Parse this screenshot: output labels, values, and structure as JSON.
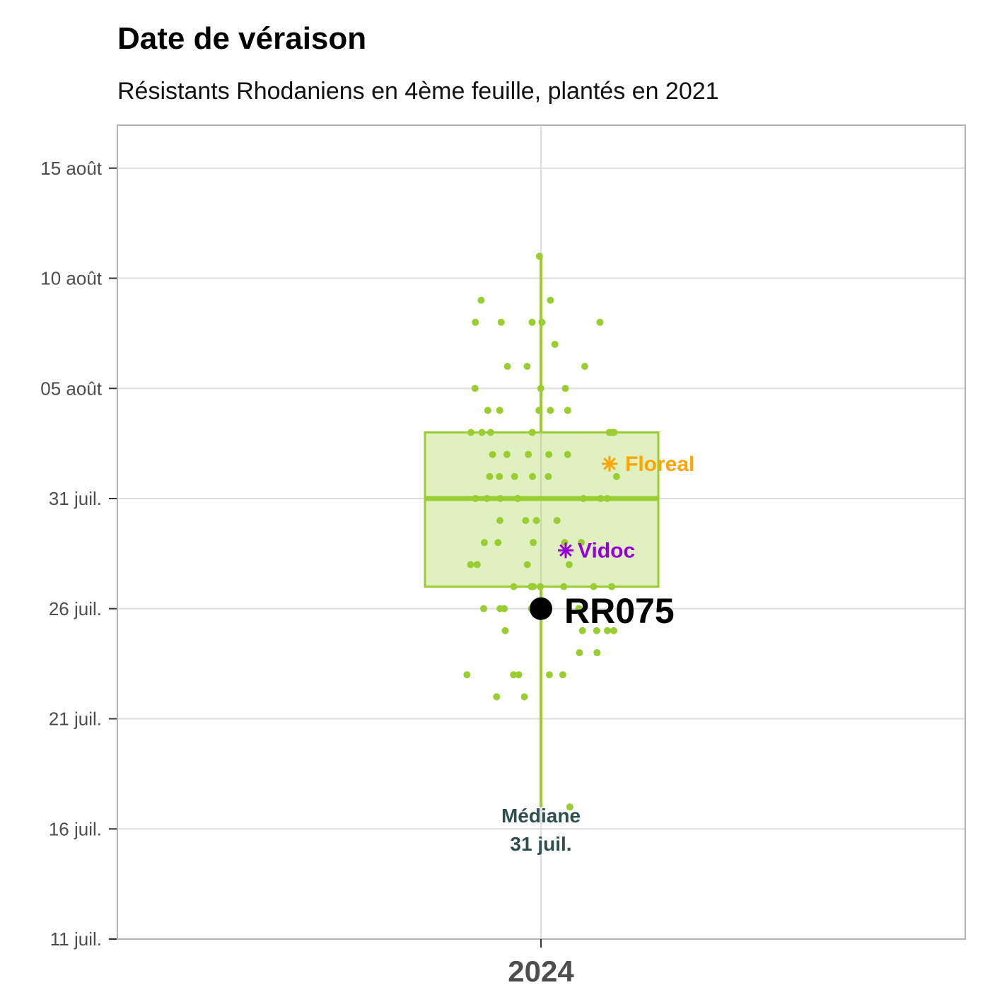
{
  "chart_data": {
    "type": "boxplot",
    "title": "Date de véraison",
    "subtitle": "Résistants Rhodaniens en 4ème feuille, plantés en 2021",
    "xlabel": "",
    "ylabel": "",
    "categories": [
      "2024"
    ],
    "y_ticks": [
      {
        "date": "2024-07-11",
        "label": "11 juil."
      },
      {
        "date": "2024-07-16",
        "label": "16 juil."
      },
      {
        "date": "2024-07-21",
        "label": "21 juil."
      },
      {
        "date": "2024-07-26",
        "label": "26 juil."
      },
      {
        "date": "2024-07-31",
        "label": "31 juil."
      },
      {
        "date": "2024-08-05",
        "label": "05 août"
      },
      {
        "date": "2024-08-10",
        "label": "10 août"
      },
      {
        "date": "2024-08-15",
        "label": "15 août"
      }
    ],
    "ylim": [
      "2024-07-11",
      "2024-08-17"
    ],
    "grid": true,
    "box": {
      "category": "2024",
      "min": "2024-07-17",
      "q1": "2024-07-27",
      "median": "2024-07-31",
      "q3": "2024-08-03",
      "max": "2024-08-11",
      "color": "#9acd32"
    },
    "points": [
      {
        "date": "2024-08-11"
      },
      {
        "date": "2024-08-09"
      },
      {
        "date": "2024-08-09"
      },
      {
        "date": "2024-08-08"
      },
      {
        "date": "2024-08-08"
      },
      {
        "date": "2024-08-08"
      },
      {
        "date": "2024-08-08"
      },
      {
        "date": "2024-08-08"
      },
      {
        "date": "2024-08-07"
      },
      {
        "date": "2024-08-06"
      },
      {
        "date": "2024-08-06"
      },
      {
        "date": "2024-08-06"
      },
      {
        "date": "2024-08-05"
      },
      {
        "date": "2024-08-05"
      },
      {
        "date": "2024-08-05"
      },
      {
        "date": "2024-08-04"
      },
      {
        "date": "2024-08-04"
      },
      {
        "date": "2024-08-04"
      },
      {
        "date": "2024-08-04"
      },
      {
        "date": "2024-08-04"
      },
      {
        "date": "2024-08-03"
      },
      {
        "date": "2024-08-03"
      },
      {
        "date": "2024-08-03"
      },
      {
        "date": "2024-08-03"
      },
      {
        "date": "2024-08-03"
      },
      {
        "date": "2024-08-03"
      },
      {
        "date": "2024-08-03"
      },
      {
        "date": "2024-08-02"
      },
      {
        "date": "2024-08-02"
      },
      {
        "date": "2024-08-02"
      },
      {
        "date": "2024-08-02"
      },
      {
        "date": "2024-08-02"
      },
      {
        "date": "2024-08-01"
      },
      {
        "date": "2024-08-01"
      },
      {
        "date": "2024-08-01"
      },
      {
        "date": "2024-08-01"
      },
      {
        "date": "2024-08-01"
      },
      {
        "date": "2024-08-01"
      },
      {
        "date": "2024-07-31"
      },
      {
        "date": "2024-07-31"
      },
      {
        "date": "2024-07-31"
      },
      {
        "date": "2024-07-31"
      },
      {
        "date": "2024-07-31"
      },
      {
        "date": "2024-07-31"
      },
      {
        "date": "2024-07-31"
      },
      {
        "date": "2024-07-31"
      },
      {
        "date": "2024-07-30"
      },
      {
        "date": "2024-07-30"
      },
      {
        "date": "2024-07-30"
      },
      {
        "date": "2024-07-30"
      },
      {
        "date": "2024-07-29"
      },
      {
        "date": "2024-07-29"
      },
      {
        "date": "2024-07-29"
      },
      {
        "date": "2024-07-29"
      },
      {
        "date": "2024-07-29"
      },
      {
        "date": "2024-07-28"
      },
      {
        "date": "2024-07-28"
      },
      {
        "date": "2024-07-28"
      },
      {
        "date": "2024-07-28"
      },
      {
        "date": "2024-07-27"
      },
      {
        "date": "2024-07-27"
      },
      {
        "date": "2024-07-27"
      },
      {
        "date": "2024-07-27"
      },
      {
        "date": "2024-07-27"
      },
      {
        "date": "2024-07-27"
      },
      {
        "date": "2024-07-27"
      },
      {
        "date": "2024-07-27"
      },
      {
        "date": "2024-07-26"
      },
      {
        "date": "2024-07-26"
      },
      {
        "date": "2024-07-26"
      },
      {
        "date": "2024-07-26"
      },
      {
        "date": "2024-07-26"
      },
      {
        "date": "2024-07-25"
      },
      {
        "date": "2024-07-25"
      },
      {
        "date": "2024-07-25"
      },
      {
        "date": "2024-07-25"
      },
      {
        "date": "2024-07-25"
      },
      {
        "date": "2024-07-24"
      },
      {
        "date": "2024-07-24"
      },
      {
        "date": "2024-07-23"
      },
      {
        "date": "2024-07-23"
      },
      {
        "date": "2024-07-23"
      },
      {
        "date": "2024-07-23"
      },
      {
        "date": "2024-07-23"
      },
      {
        "date": "2024-07-22"
      },
      {
        "date": "2024-07-22"
      },
      {
        "date": "2024-07-17"
      }
    ],
    "highlight": {
      "label": "RR075",
      "date": "2024-07-26",
      "color": "#000000"
    },
    "references": [
      {
        "label": "Floreal",
        "date": "2024-08-01",
        "color": "#ffa500"
      },
      {
        "label": "Vidoc",
        "date": "2024-07-29",
        "color": "#9400d3"
      }
    ],
    "median_annotation": {
      "line1": "Médiane",
      "line2": "31 juil.",
      "color": "#2f4f4f"
    }
  }
}
